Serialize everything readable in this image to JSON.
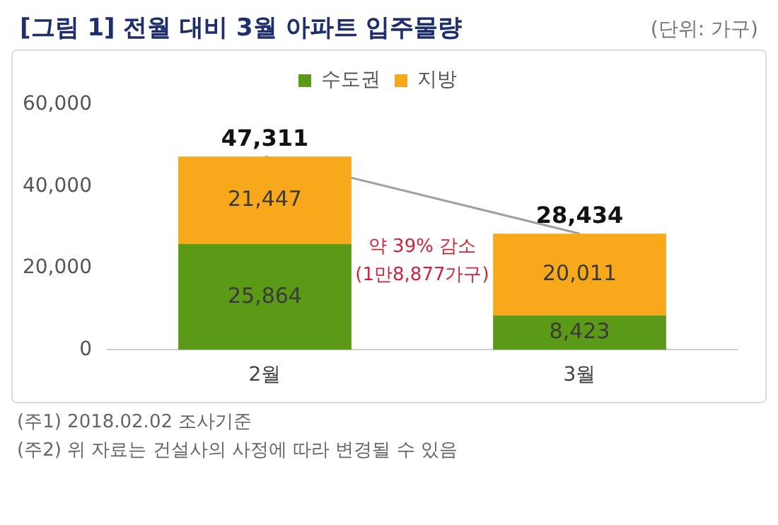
{
  "chart_data": {
    "type": "bar",
    "title": "[그림 1] 전월 대비 3월 아파트 입주물량",
    "subtitle": "(단위: 가구)",
    "categories": [
      "2월",
      "3월"
    ],
    "stacked": true,
    "series": [
      {
        "name": "수도권",
        "color": "#5b9a17",
        "values": [
          25864,
          8423
        ],
        "value_labels": [
          "25,864",
          "8,423"
        ]
      },
      {
        "name": "지방",
        "color": "#f7a81b",
        "values": [
          21447,
          20011
        ],
        "value_labels": [
          "21,447",
          "20,011"
        ]
      },
      {
        "type": "line",
        "color": "#a0a0a0",
        "values": [
          47311,
          28434
        ],
        "marker": "none"
      }
    ],
    "totals": [
      "47,311",
      "28,434"
    ],
    "ylim": [
      0,
      60000
    ],
    "yticks": [
      0,
      {
        "value": 20000,
        "label": "20,000"
      },
      {
        "value": 40000,
        "label": "40,000"
      },
      {
        "value": 60000,
        "label": "60,000"
      }
    ],
    "grid": false,
    "legend": "top",
    "annotations": [
      "약 39% 감소",
      "(1만8,877가구)",
      "(주1) 2018.02.02 조사기준",
      "(주2) 위 자료는 건설사의 사정에 따라 변경될 수 있음"
    ]
  }
}
